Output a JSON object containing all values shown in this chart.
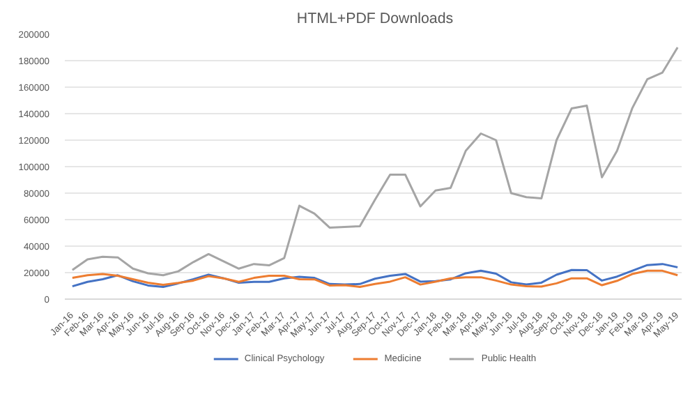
{
  "chart_data": {
    "type": "line",
    "title": "HTML+PDF Downloads",
    "categories": [
      "Jan-16",
      "Feb-16",
      "Mar-16",
      "Apr-16",
      "May-16",
      "Jun-16",
      "Jul-16",
      "Aug-16",
      "Sep-16",
      "Oct-16",
      "Nov-16",
      "Dec-16",
      "Jan-17",
      "Feb-17",
      "Mar-17",
      "Apr-17",
      "May-17",
      "Jun-17",
      "Jul-17",
      "Aug-17",
      "Sep-17",
      "Oct-17",
      "Nov-17",
      "Dec-17",
      "Jan-18",
      "Feb-18",
      "Mar-18",
      "Apr-18",
      "May-18",
      "Jun-18",
      "Jul-18",
      "Aug-18",
      "Sep-18",
      "Oct-18",
      "Nov-18",
      "Dec-18",
      "Jan-19",
      "Feb-19",
      "Mar-19",
      "Apr-19",
      "May-19"
    ],
    "series": [
      {
        "name": "Clinical Psychology",
        "color": "#4472c4",
        "values": [
          9700,
          13000,
          15000,
          18000,
          13500,
          10300,
          9200,
          11900,
          15000,
          18400,
          15700,
          12400,
          13000,
          13000,
          15700,
          16800,
          16000,
          11400,
          11000,
          11400,
          15400,
          17600,
          19000,
          13200,
          13500,
          14900,
          19500,
          21400,
          19200,
          12700,
          11000,
          12400,
          18400,
          22000,
          21900,
          14000,
          17000,
          21400,
          25700,
          26500,
          24000
        ]
      },
      {
        "name": "Medicine",
        "color": "#ed7d31",
        "values": [
          16000,
          18000,
          19000,
          17600,
          15000,
          12400,
          10800,
          12200,
          14000,
          17300,
          15700,
          13000,
          16000,
          17600,
          17600,
          15000,
          14900,
          10300,
          10500,
          9200,
          11400,
          13200,
          16500,
          11000,
          13200,
          15700,
          16500,
          16500,
          14000,
          11000,
          9700,
          9500,
          11900,
          15700,
          15700,
          10500,
          13800,
          18900,
          21400,
          21400,
          18000
        ]
      },
      {
        "name": "Public Health",
        "color": "#a5a5a5",
        "values": [
          22000,
          30000,
          32000,
          31500,
          23000,
          19500,
          18000,
          21000,
          28000,
          34000,
          28500,
          23000,
          26500,
          25500,
          31000,
          70500,
          64500,
          54000,
          54500,
          55000,
          75000,
          94000,
          94000,
          70000,
          82000,
          84000,
          112000,
          125000,
          120000,
          80000,
          77000,
          76000,
          120000,
          144000,
          146000,
          92000,
          112000,
          144000,
          166000,
          171000,
          190000
        ]
      }
    ],
    "ylim": [
      0,
      200000
    ],
    "yticks": [
      0,
      20000,
      40000,
      60000,
      80000,
      100000,
      120000,
      140000,
      160000,
      180000,
      200000
    ],
    "grid": "y",
    "legend": "bottom",
    "marker": "none",
    "line_style": "solid"
  }
}
